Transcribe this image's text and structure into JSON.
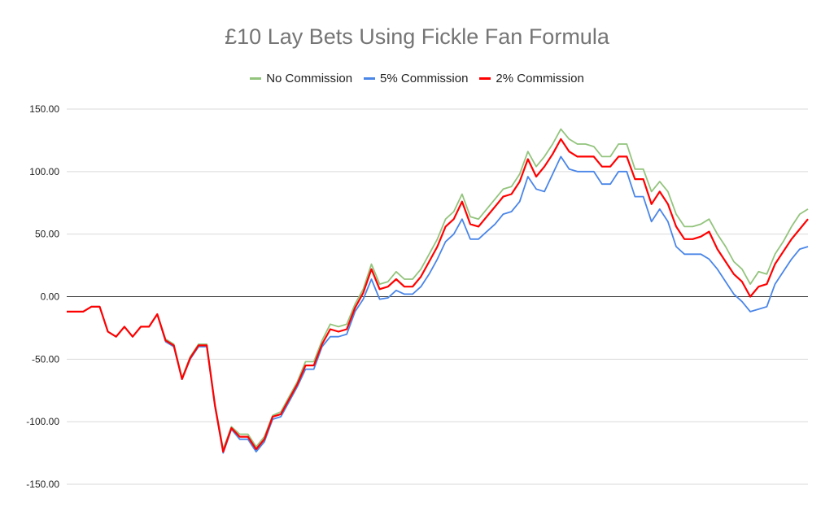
{
  "chart_data": {
    "type": "line",
    "title": "£10 Lay Bets Using Fickle Fan Formula",
    "ylim": [
      -150,
      150
    ],
    "y_ticks": [
      "150.00",
      "100.00",
      "50.00",
      "0.00",
      "-50.00",
      "-100.00",
      "-150.00"
    ],
    "y_tick_values": [
      150,
      100,
      50,
      0,
      -50,
      -100,
      -150
    ],
    "legend_position": "top",
    "grid": true,
    "x": [
      0,
      1,
      2,
      3,
      4,
      5,
      6,
      7,
      8,
      9,
      10,
      11,
      12,
      13,
      14,
      15,
      16,
      17,
      18,
      19,
      20,
      21,
      22,
      23,
      24,
      25,
      26,
      27,
      28,
      29,
      30,
      31,
      32,
      33,
      34,
      35,
      36,
      37,
      38,
      39,
      40,
      41,
      42,
      43,
      44,
      45,
      46,
      47,
      48,
      49,
      50,
      51,
      52,
      53,
      54,
      55,
      56,
      57,
      58,
      59,
      60,
      61,
      62,
      63,
      64,
      65,
      66,
      67,
      68,
      69,
      70,
      71,
      72,
      73,
      74,
      75,
      76,
      77,
      78,
      79,
      80,
      81,
      82,
      83,
      84,
      85,
      86,
      87,
      88,
      89,
      90
    ],
    "series": [
      {
        "name": "No Commission",
        "color": "#93c47d",
        "values": [
          -12,
          -12,
          -12,
          -8,
          -8,
          -28,
          -32,
          -24,
          -32,
          -24,
          -24,
          -14,
          -34,
          -38,
          -65,
          -48,
          -38,
          -38,
          -86,
          -122,
          -104,
          -110,
          -110,
          -120,
          -112,
          -95,
          -92,
          -80,
          -68,
          -52,
          -52,
          -35,
          -22,
          -24,
          -22,
          -6,
          6,
          26,
          10,
          12,
          20,
          14,
          14,
          22,
          34,
          46,
          62,
          68,
          82,
          64,
          62,
          70,
          78,
          86,
          88,
          98,
          116,
          104,
          112,
          122,
          134,
          126,
          122,
          122,
          120,
          112,
          112,
          122,
          122,
          102,
          102,
          84,
          92,
          84,
          66,
          56,
          56,
          58,
          62,
          50,
          40,
          28,
          22,
          10,
          20,
          18,
          34,
          44,
          56,
          66,
          70
        ]
      },
      {
        "name": "5% Commission",
        "color": "#4a86e8",
        "values": [
          -12,
          -12,
          -12,
          -8,
          -8,
          -28,
          -32,
          -24,
          -32,
          -24,
          -24,
          -14,
          -36,
          -40,
          -66,
          -50,
          -40,
          -40,
          -88,
          -125,
          -106,
          -114,
          -114,
          -124,
          -116,
          -98,
          -96,
          -84,
          -72,
          -58,
          -58,
          -40,
          -32,
          -32,
          -30,
          -12,
          -2,
          14,
          -2,
          -1,
          5,
          2,
          2,
          8,
          18,
          30,
          44,
          50,
          62,
          46,
          46,
          52,
          58,
          66,
          68,
          76,
          96,
          86,
          84,
          98,
          112,
          102,
          100,
          100,
          100,
          90,
          90,
          100,
          100,
          80,
          80,
          60,
          70,
          60,
          40,
          34,
          34,
          34,
          30,
          22,
          12,
          2,
          -4,
          -12,
          -10,
          -8,
          10,
          20,
          30,
          38,
          40
        ]
      },
      {
        "name": "2% Commission",
        "color": "#ff0000",
        "values": [
          -12,
          -12,
          -12,
          -8,
          -8,
          -28,
          -32,
          -24,
          -32,
          -24,
          -24,
          -14,
          -35,
          -39,
          -66,
          -49,
          -39,
          -39,
          -87,
          -124,
          -105,
          -112,
          -112,
          -122,
          -114,
          -96,
          -94,
          -82,
          -70,
          -55,
          -55,
          -38,
          -26,
          -28,
          -26,
          -9,
          3,
          22,
          6,
          8,
          14,
          8,
          8,
          16,
          28,
          40,
          56,
          62,
          76,
          58,
          56,
          64,
          72,
          80,
          82,
          92,
          110,
          96,
          104,
          114,
          126,
          116,
          112,
          112,
          112,
          104,
          104,
          112,
          112,
          94,
          94,
          74,
          84,
          74,
          56,
          46,
          46,
          48,
          52,
          38,
          28,
          18,
          12,
          0,
          8,
          10,
          26,
          36,
          46,
          54,
          62
        ]
      }
    ]
  }
}
